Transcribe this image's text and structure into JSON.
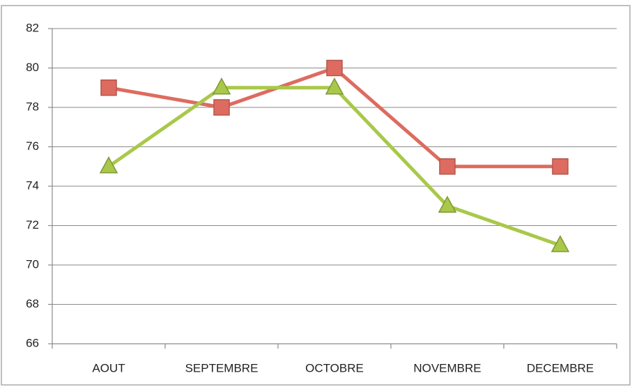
{
  "chart_data": {
    "type": "line",
    "categories": [
      "AOUT",
      "SEPTEMBRE",
      "OCTOBRE",
      "NOVEMBRE",
      "DECEMBRE"
    ],
    "series": [
      {
        "color": "#de6b5f",
        "marker": "square",
        "values": [
          79,
          78,
          80,
          75,
          75
        ]
      },
      {
        "color": "#a9c84a",
        "marker": "triangle",
        "values": [
          75,
          79,
          79,
          73,
          71
        ]
      }
    ],
    "ylim": [
      66,
      82
    ],
    "yticks": [
      66,
      68,
      70,
      72,
      74,
      76,
      78,
      80,
      82
    ],
    "grid": true
  }
}
